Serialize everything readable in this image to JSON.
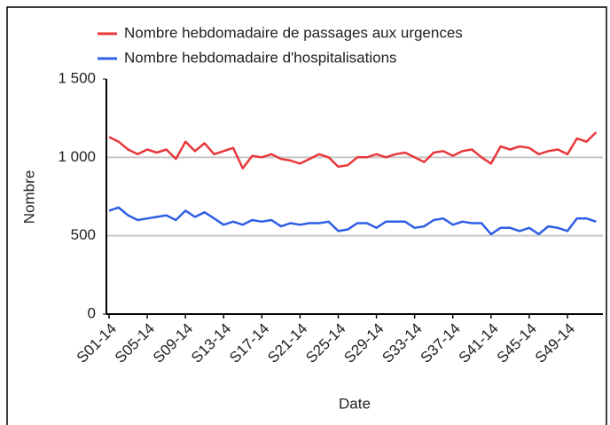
{
  "chart_data": {
    "type": "line",
    "x_label": "Date",
    "y_label": "Nombre",
    "categories": [
      "S01-14",
      null,
      null,
      null,
      "S05-14",
      null,
      null,
      null,
      "S09-14",
      null,
      null,
      null,
      "S13-14",
      null,
      null,
      null,
      "S17-14",
      null,
      null,
      null,
      "S21-14",
      null,
      null,
      null,
      "S25-14",
      null,
      null,
      null,
      "S29-14",
      null,
      null,
      null,
      "S33-14",
      null,
      null,
      null,
      "S37-14",
      null,
      null,
      null,
      "S41-14",
      null,
      null,
      null,
      "S45-14",
      null,
      null,
      null,
      "S49-14",
      null,
      null,
      null
    ],
    "series": [
      {
        "name": "Nombre hebdomadaire de passages aux urgences",
        "color": "#e8383a",
        "values": [
          1130,
          1100,
          1050,
          1020,
          1050,
          1030,
          1050,
          990,
          1100,
          1040,
          1090,
          1020,
          1040,
          1060,
          930,
          1010,
          1000,
          1020,
          990,
          980,
          960,
          990,
          1020,
          1000,
          940,
          950,
          1000,
          1000,
          1020,
          1000,
          1020,
          1030,
          1000,
          970,
          1030,
          1040,
          1010,
          1040,
          1050,
          1000,
          960,
          1070,
          1050,
          1070,
          1060,
          1020,
          1040,
          1050,
          1020,
          1120,
          1100,
          1160
        ]
      },
      {
        "name": "Nombre hebdomadaire d'hospitalisations",
        "color": "#2f5ee6",
        "values": [
          660,
          680,
          630,
          600,
          610,
          620,
          630,
          600,
          660,
          620,
          650,
          610,
          570,
          590,
          570,
          600,
          590,
          600,
          560,
          580,
          570,
          580,
          580,
          590,
          530,
          540,
          580,
          580,
          550,
          590,
          590,
          590,
          550,
          560,
          600,
          610,
          570,
          590,
          580,
          580,
          510,
          550,
          550,
          530,
          550,
          510,
          560,
          550,
          530,
          610,
          610,
          590
        ]
      }
    ],
    "ylim": [
      0,
      1500
    ],
    "yticks": [
      0,
      500,
      {
        "value": 1000,
        "label": "1 000"
      },
      {
        "value": 1500,
        "label": "1 500"
      }
    ],
    "grid": true
  }
}
